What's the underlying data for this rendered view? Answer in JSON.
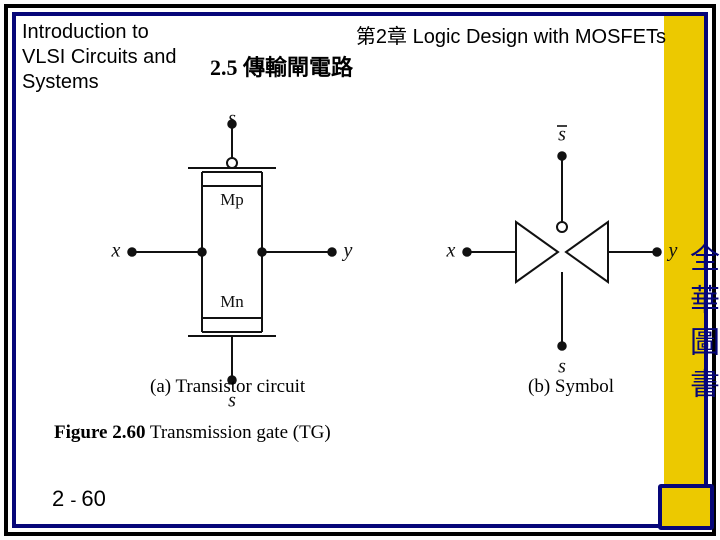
{
  "header": {
    "left_line1": "Introduction to",
    "left_line2": "VLSI Circuits and",
    "left_line3": "Systems",
    "right": "第2章 Logic Design with MOSFETs",
    "section": "2.5 傳輸閘電路"
  },
  "figure": {
    "a": {
      "x": "x",
      "y": "y",
      "mp": "Mp",
      "mn": "Mn",
      "s": "s",
      "sbar": "s",
      "caption": "(a) Transistor circuit"
    },
    "b": {
      "x": "x",
      "y": "y",
      "s": "s",
      "sbar": "s",
      "caption": "(b) Symbol"
    },
    "main_caption_bold": "Figure 2.60",
    "main_caption_rest": "  Transmission gate (TG)"
  },
  "page": {
    "chapter": "2",
    "num": "60"
  },
  "side_text": "全華圖書",
  "style": {
    "stroke": "#111111",
    "stroke_w": 2,
    "dot_r": 4,
    "circ_r": 5,
    "font": "Times New Roman"
  }
}
